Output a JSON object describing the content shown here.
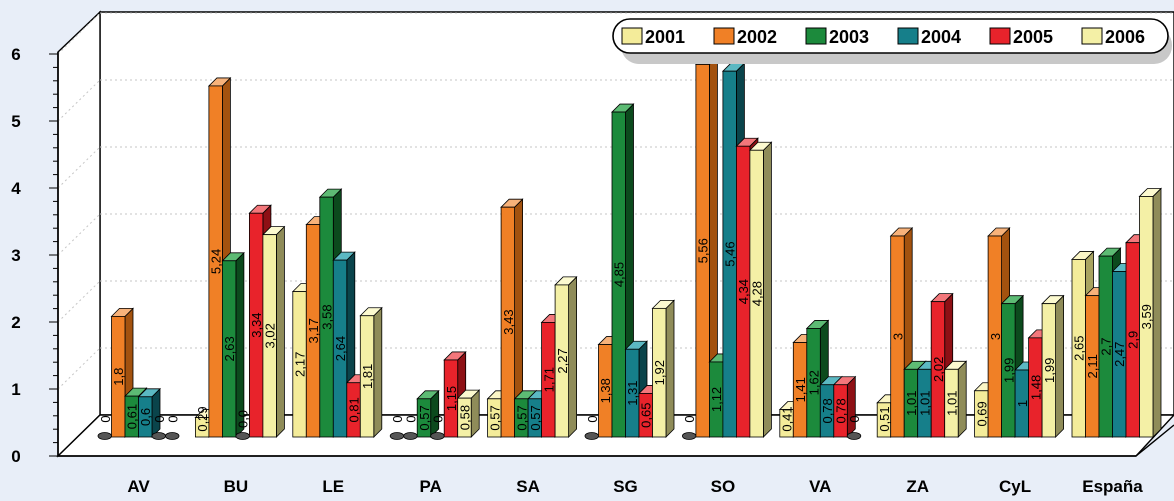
{
  "chart_data": {
    "type": "bar",
    "categories": [
      "AV",
      "BU",
      "LE",
      "PA",
      "SA",
      "SG",
      "SO",
      "VA",
      "ZA",
      "CyL",
      "España"
    ],
    "series": [
      {
        "name": "2001",
        "color": "#f4ec9a",
        "side": "#a9a460",
        "top": "#fbf6c6",
        "values": [
          0,
          0.29,
          2.17,
          0,
          0.57,
          0,
          0,
          0.41,
          0.51,
          0.69,
          2.65
        ]
      },
      {
        "name": "2002",
        "color": "#f08026",
        "side": "#a3520f",
        "top": "#f7b27a",
        "values": [
          1.8,
          5.24,
          3.17,
          0,
          3.43,
          1.38,
          5.56,
          1.41,
          3,
          3,
          2.11
        ]
      },
      {
        "name": "2003",
        "color": "#1c8a3c",
        "side": "#0c4a1d",
        "top": "#5dbb74",
        "values": [
          0.61,
          2.63,
          3.58,
          0.57,
          0.57,
          4.85,
          1.12,
          1.62,
          1.01,
          1.99,
          2.7
        ]
      },
      {
        "name": "2004",
        "color": "#167f8a",
        "side": "#0a444b",
        "top": "#5bb8c2",
        "values": [
          0.6,
          0,
          2.64,
          0,
          0.57,
          1.31,
          5.46,
          0.78,
          1.01,
          1,
          2.47
        ]
      },
      {
        "name": "2005",
        "color": "#e8232b",
        "side": "#8e1015",
        "top": "#f3777b",
        "values": [
          0,
          3.34,
          0.81,
          1.15,
          1.71,
          0.65,
          4.34,
          0.78,
          2.02,
          1.48,
          2.9
        ]
      },
      {
        "name": "2006",
        "color": "#f4f0a6",
        "side": "#8f8c59",
        "top": "#fcfad0",
        "values": [
          0,
          3.02,
          1.81,
          0.58,
          2.27,
          1.92,
          4.28,
          0,
          1.01,
          1.99,
          3.59
        ]
      }
    ],
    "data_labels": [
      [
        "0",
        "1,8",
        "0,61",
        "0,6",
        "0",
        "0"
      ],
      [
        "0,29",
        "5,24",
        "2,63",
        "0,0",
        "3,34",
        "3,02"
      ],
      [
        "2,17",
        "3,17",
        "3,58",
        "2,64",
        "0,81",
        "1,81"
      ],
      [
        "0",
        "0",
        "0,57",
        "0",
        "1,15",
        "0,58"
      ],
      [
        "0,57",
        "3,43",
        "0,57",
        "0,57",
        "1,71",
        "2,27"
      ],
      [
        "0",
        "1,38",
        "4,85",
        "1,31",
        "0,65",
        "1,92"
      ],
      [
        "0",
        "5,56",
        "1,12",
        "5,46",
        "4,34",
        "4,28"
      ],
      [
        "0,41",
        "1,41",
        "1,62",
        "0,78",
        "0,78",
        "0"
      ],
      [
        "0,51",
        "3",
        "1,01",
        "1,01",
        "2,02",
        "1,01"
      ],
      [
        "0,69",
        "3",
        "1,99",
        "1",
        "1,48",
        "1,99"
      ],
      [
        "2,65",
        "2,11",
        "2,7",
        "2,47",
        "2,9",
        "3,59"
      ]
    ],
    "yticks": [
      "0",
      "1",
      "2",
      "3",
      "4",
      "5",
      "6"
    ],
    "ylim": [
      0,
      6
    ],
    "title": "",
    "xlabel": "",
    "ylabel": "",
    "legend_position": "top-right",
    "grid": true,
    "colors": {
      "background": "#e8eef8",
      "axis": "#000000",
      "wall": "#ffffff"
    }
  }
}
